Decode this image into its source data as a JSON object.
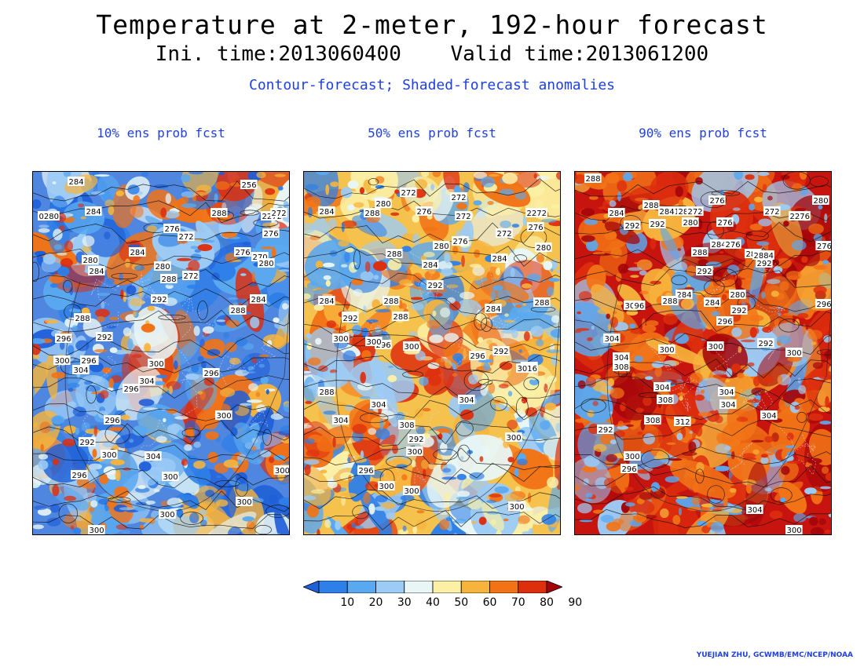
{
  "header": {
    "title": "Temperature at 2-meter, 192-hour forecast",
    "ini_label": "Ini. time:2013060400",
    "valid_label": "Valid time:2013061200",
    "subtitle": "Contour-forecast; Shaded-forecast anomalies"
  },
  "panels": [
    {
      "title": "10% ens prob fcst",
      "background": "#4f86e0",
      "labels": [
        "284",
        "0280",
        "284",
        "256",
        "288",
        "2272",
        "272",
        "276",
        "272",
        "276",
        "284",
        "280",
        "276",
        "270",
        "280",
        "280",
        "284",
        "272",
        "288",
        "292",
        "284",
        "288",
        "288",
        "296",
        "292",
        "292",
        "300",
        "296",
        "304",
        "300",
        "304",
        "296",
        "296",
        "300",
        "296",
        "292",
        "300",
        "304",
        "300",
        "300",
        "296",
        "300",
        "300",
        "300"
      ]
    },
    {
      "title": "50% ens prob fcst",
      "background": "#f6c24e",
      "labels": [
        "272",
        "284",
        "280",
        "272",
        "288",
        "276",
        "272",
        "2272",
        "276",
        "280",
        "276",
        "272",
        "280",
        "284",
        "288",
        "284",
        "292",
        "292",
        "284",
        "288",
        "288",
        "284",
        "292",
        "288",
        "296",
        "300",
        "300",
        "300",
        "296",
        "292",
        "300",
        "3016",
        "288",
        "304",
        "304",
        "308",
        "304",
        "292",
        "300",
        "296",
        "300",
        "300",
        "300",
        "300"
      ]
    },
    {
      "title": "90% ens prob fcst",
      "background": "#c8140e",
      "labels": [
        "288",
        "276",
        "280",
        "284",
        "288",
        "2841",
        "280",
        "272",
        "272",
        "2276",
        "292",
        "292",
        "276",
        "280",
        "284",
        "276",
        "288",
        "288",
        "2884",
        "276",
        "292",
        "292",
        "280",
        "284",
        "284",
        "288",
        "300",
        "96",
        "292",
        "296",
        "292",
        "296",
        "304",
        "300",
        "300",
        "300",
        "304",
        "308",
        "304",
        "304",
        "308",
        "304",
        "308",
        "312",
        "304",
        "292",
        "300",
        "296",
        "304",
        "300"
      ]
    }
  ],
  "colorbar": {
    "ticks": [
      "10",
      "20",
      "30",
      "40",
      "50",
      "60",
      "70",
      "80",
      "90"
    ],
    "colors": [
      "#1f5fd8",
      "#2e7fe8",
      "#5aa8f0",
      "#9ccbf5",
      "#e8f6f6",
      "#fbf0a6",
      "#f7b43c",
      "#f27316",
      "#dd2e0e",
      "#a3050a"
    ]
  },
  "credit": "YUEJIAN ZHU, GCWMB/EMC/NCEP/NOAA"
}
